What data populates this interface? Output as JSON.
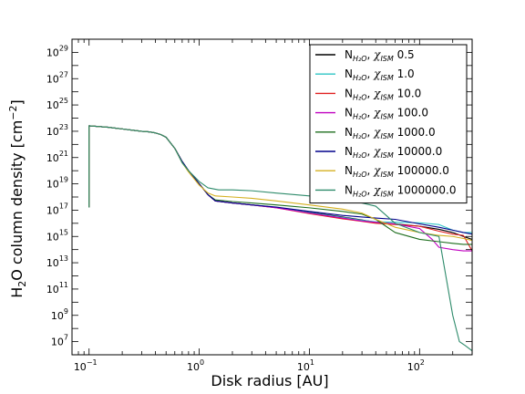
{
  "chart_data": {
    "type": "line",
    "xlabel": "Disk radius [AU]",
    "ylabel_main": "H",
    "ylabel_sub": "2",
    "ylabel_rest": "O column density [cm",
    "ylabel_exp": "−2",
    "ylabel_end": "]",
    "xscale": "log",
    "yscale": "log",
    "xlim": [
      0.07,
      300
    ],
    "ylim": [
      1000000.0,
      1e+30
    ],
    "x_ticks": [
      {
        "value": 0.1,
        "base": "10",
        "exp": "−1"
      },
      {
        "value": 1,
        "base": "10",
        "exp": "0"
      },
      {
        "value": 10,
        "base": "10",
        "exp": "1"
      },
      {
        "value": 100,
        "base": "10",
        "exp": "2"
      }
    ],
    "y_ticks": [
      {
        "value": 10000000.0,
        "base": "10",
        "exp": "7"
      },
      {
        "value": 1000000000.0,
        "base": "10",
        "exp": "9"
      },
      {
        "value": 100000000000.0,
        "base": "10",
        "exp": "11"
      },
      {
        "value": 10000000000000.0,
        "base": "10",
        "exp": "13"
      },
      {
        "value": 1000000000000000.0,
        "base": "10",
        "exp": "15"
      },
      {
        "value": 1e+17,
        "base": "10",
        "exp": "17"
      },
      {
        "value": 1e+19,
        "base": "10",
        "exp": "19"
      },
      {
        "value": 1e+21,
        "base": "10",
        "exp": "21"
      },
      {
        "value": 1e+23,
        "base": "10",
        "exp": "23"
      },
      {
        "value": 1e+25,
        "base": "10",
        "exp": "25"
      },
      {
        "value": 1e+27,
        "base": "10",
        "exp": "27"
      },
      {
        "value": 1e+29,
        "base": "10",
        "exp": "29"
      }
    ],
    "legend_position": "top-right",
    "legend_prefix": "N",
    "legend_sub": "H₂O",
    "legend_chi": "χ",
    "legend_chi_sub": "ISM",
    "series": [
      {
        "name": "0.5",
        "color": "#000000",
        "points": [
          [
            0.1,
            1.6e+17
          ],
          [
            0.1,
            2.6e+23
          ],
          [
            0.15,
            2e+23
          ],
          [
            0.2,
            1.5e+23
          ],
          [
            0.25,
            1.2e+23
          ],
          [
            0.3,
            1e+23
          ],
          [
            0.35,
            9e+22
          ],
          [
            0.4,
            7.5e+22
          ],
          [
            0.45,
            5.5e+22
          ],
          [
            0.5,
            3.5e+22
          ],
          [
            0.6,
            5e+21
          ],
          [
            0.7,
            5e+20
          ],
          [
            0.8,
            1e+20
          ],
          [
            1.0,
            1e+19
          ],
          [
            1.2,
            1.5e+18
          ],
          [
            1.4,
            5e+17
          ],
          [
            2.0,
            3.5e+17
          ],
          [
            3.0,
            2.5e+17
          ],
          [
            5.0,
            1.6e+17
          ],
          [
            10,
            7e+16
          ],
          [
            20,
            3e+16
          ],
          [
            30,
            1.8e+16
          ],
          [
            40,
            1.2e+16
          ],
          [
            60,
            9000000000000000.0
          ],
          [
            100,
            6000000000000000.0
          ],
          [
            150,
            3500000000000000.0
          ],
          [
            200,
            2000000000000000.0
          ],
          [
            250,
            1000000000000000.0
          ],
          [
            300,
            600000000000000.0
          ]
        ]
      },
      {
        "name": "1.0",
        "color": "#2ec4c4",
        "points": [
          [
            0.1,
            1.6e+17
          ],
          [
            0.1,
            2.6e+23
          ],
          [
            0.15,
            2e+23
          ],
          [
            0.2,
            1.5e+23
          ],
          [
            0.25,
            1.2e+23
          ],
          [
            0.3,
            1e+23
          ],
          [
            0.35,
            9e+22
          ],
          [
            0.4,
            7.5e+22
          ],
          [
            0.45,
            5.5e+22
          ],
          [
            0.5,
            3.5e+22
          ],
          [
            0.6,
            5e+21
          ],
          [
            0.7,
            5e+20
          ],
          [
            0.8,
            1e+20
          ],
          [
            1.0,
            1e+19
          ],
          [
            1.2,
            1.5e+18
          ],
          [
            1.4,
            5e+17
          ],
          [
            2.0,
            3.5e+17
          ],
          [
            3.0,
            2.5e+17
          ],
          [
            5.0,
            1.6e+17
          ],
          [
            10,
            6.5e+16
          ],
          [
            20,
            2.8e+16
          ],
          [
            30,
            1.7e+16
          ],
          [
            40,
            1.3e+16
          ],
          [
            60,
            1.2e+16
          ],
          [
            100,
            1.1e+16
          ],
          [
            150,
            8000000000000000.0
          ],
          [
            200,
            3000000000000000.0
          ],
          [
            250,
            2000000000000000.0
          ],
          [
            300,
            2000000000000000.0
          ]
        ]
      },
      {
        "name": "10.0",
        "color": "#e02020",
        "points": [
          [
            0.1,
            1.6e+17
          ],
          [
            0.1,
            2.6e+23
          ],
          [
            0.15,
            2e+23
          ],
          [
            0.2,
            1.5e+23
          ],
          [
            0.25,
            1.2e+23
          ],
          [
            0.3,
            1e+23
          ],
          [
            0.35,
            9e+22
          ],
          [
            0.4,
            7.5e+22
          ],
          [
            0.45,
            5.5e+22
          ],
          [
            0.5,
            3.5e+22
          ],
          [
            0.6,
            5e+21
          ],
          [
            0.7,
            5e+20
          ],
          [
            0.8,
            1e+20
          ],
          [
            1.0,
            1e+19
          ],
          [
            1.2,
            1.5e+18
          ],
          [
            1.4,
            5e+17
          ],
          [
            2.0,
            3.5e+17
          ],
          [
            3.0,
            2.5e+17
          ],
          [
            5.0,
            1.5e+17
          ],
          [
            10,
            5.5e+16
          ],
          [
            20,
            2.2e+16
          ],
          [
            30,
            1.4e+16
          ],
          [
            40,
            1e+16
          ],
          [
            60,
            8000000000000000.0
          ],
          [
            100,
            6000000000000000.0
          ],
          [
            150,
            2500000000000000.0
          ],
          [
            200,
            1500000000000000.0
          ],
          [
            250,
            1200000000000000.0
          ],
          [
            300,
            80000000000000.0
          ]
        ]
      },
      {
        "name": "100.0",
        "color": "#c000c0",
        "points": [
          [
            0.1,
            1.6e+17
          ],
          [
            0.1,
            2.6e+23
          ],
          [
            0.15,
            2e+23
          ],
          [
            0.2,
            1.5e+23
          ],
          [
            0.25,
            1.2e+23
          ],
          [
            0.3,
            1e+23
          ],
          [
            0.35,
            9e+22
          ],
          [
            0.4,
            7.5e+22
          ],
          [
            0.45,
            5.5e+22
          ],
          [
            0.5,
            3.5e+22
          ],
          [
            0.6,
            5e+21
          ],
          [
            0.7,
            5e+20
          ],
          [
            0.8,
            1e+20
          ],
          [
            1.0,
            1e+19
          ],
          [
            1.2,
            1.5e+18
          ],
          [
            1.4,
            5e+17
          ],
          [
            2.0,
            3.5e+17
          ],
          [
            3.0,
            2.5e+17
          ],
          [
            5.0,
            1.5e+17
          ],
          [
            10,
            6e+16
          ],
          [
            20,
            2.5e+16
          ],
          [
            30,
            1.5e+16
          ],
          [
            40,
            1.2e+16
          ],
          [
            60,
            9000000000000000.0
          ],
          [
            100,
            4000000000000000.0
          ],
          [
            130,
            600000000000000.0
          ],
          [
            150,
            150000000000000.0
          ],
          [
            200,
            100000000000000.0
          ],
          [
            250,
            80000000000000.0
          ],
          [
            300,
            80000000000000.0
          ]
        ]
      },
      {
        "name": "1000.0",
        "color": "#1e6e1e",
        "points": [
          [
            0.1,
            1.6e+17
          ],
          [
            0.1,
            2.6e+23
          ],
          [
            0.15,
            2e+23
          ],
          [
            0.2,
            1.5e+23
          ],
          [
            0.25,
            1.2e+23
          ],
          [
            0.3,
            1e+23
          ],
          [
            0.35,
            9e+22
          ],
          [
            0.4,
            7.5e+22
          ],
          [
            0.45,
            5.5e+22
          ],
          [
            0.5,
            3.5e+22
          ],
          [
            0.6,
            5e+21
          ],
          [
            0.7,
            5e+20
          ],
          [
            0.8,
            1e+20
          ],
          [
            1.0,
            1e+19
          ],
          [
            1.2,
            1.5e+18
          ],
          [
            1.4,
            6e+17
          ],
          [
            2.0,
            4.5e+17
          ],
          [
            3.0,
            3.5e+17
          ],
          [
            5.0,
            2.5e+17
          ],
          [
            10,
            1.5e+17
          ],
          [
            20,
            8e+16
          ],
          [
            30,
            5e+16
          ],
          [
            40,
            2e+16
          ],
          [
            60,
            2000000000000000.0
          ],
          [
            100,
            600000000000000.0
          ],
          [
            150,
            400000000000000.0
          ],
          [
            200,
            300000000000000.0
          ],
          [
            250,
            250000000000000.0
          ],
          [
            300,
            250000000000000.0
          ]
        ]
      },
      {
        "name": "10000.0",
        "color": "#00008b",
        "points": [
          [
            0.1,
            1.6e+17
          ],
          [
            0.1,
            2.6e+23
          ],
          [
            0.15,
            2e+23
          ],
          [
            0.2,
            1.5e+23
          ],
          [
            0.25,
            1.2e+23
          ],
          [
            0.3,
            1e+23
          ],
          [
            0.35,
            9e+22
          ],
          [
            0.4,
            7.5e+22
          ],
          [
            0.45,
            5.5e+22
          ],
          [
            0.5,
            3.5e+22
          ],
          [
            0.6,
            5e+21
          ],
          [
            0.7,
            5e+20
          ],
          [
            0.8,
            1e+20
          ],
          [
            1.0,
            1e+19
          ],
          [
            1.2,
            1.5e+18
          ],
          [
            1.4,
            5e+17
          ],
          [
            2.0,
            3.5e+17
          ],
          [
            3.0,
            2.5e+17
          ],
          [
            5.0,
            1.7e+17
          ],
          [
            10,
            8e+16
          ],
          [
            20,
            4e+16
          ],
          [
            30,
            3e+16
          ],
          [
            40,
            2.5e+16
          ],
          [
            60,
            2e+16
          ],
          [
            100,
            9000000000000000.0
          ],
          [
            150,
            5000000000000000.0
          ],
          [
            200,
            3000000000000000.0
          ],
          [
            250,
            2000000000000000.0
          ],
          [
            300,
            1500000000000000.0
          ]
        ]
      },
      {
        "name": "100000.0",
        "color": "#d4b020",
        "points": [
          [
            0.1,
            1.6e+17
          ],
          [
            0.1,
            2.6e+23
          ],
          [
            0.15,
            2e+23
          ],
          [
            0.2,
            1.5e+23
          ],
          [
            0.25,
            1.2e+23
          ],
          [
            0.3,
            1e+23
          ],
          [
            0.35,
            9e+22
          ],
          [
            0.4,
            7.5e+22
          ],
          [
            0.45,
            5.5e+22
          ],
          [
            0.5,
            3.5e+22
          ],
          [
            0.6,
            5e+21
          ],
          [
            0.7,
            4e+20
          ],
          [
            0.8,
            8e+19
          ],
          [
            1.0,
            8e+18
          ],
          [
            1.2,
            2e+18
          ],
          [
            1.4,
            1.2e+18
          ],
          [
            2.0,
            1e+18
          ],
          [
            3.0,
            8e+17
          ],
          [
            5.0,
            5e+17
          ],
          [
            10,
            2.5e+17
          ],
          [
            20,
            1.2e+17
          ],
          [
            30,
            6e+16
          ],
          [
            40,
            2e+16
          ],
          [
            60,
            5000000000000000.0
          ],
          [
            100,
            2000000000000000.0
          ],
          [
            150,
            1200000000000000.0
          ],
          [
            200,
            1000000000000000.0
          ],
          [
            250,
            700000000000000.0
          ],
          [
            300,
            500000000000000.0
          ]
        ]
      },
      {
        "name": "1000000.0",
        "color": "#2e8b6b",
        "points": [
          [
            0.1,
            1.6e+17
          ],
          [
            0.1,
            2.6e+23
          ],
          [
            0.15,
            2e+23
          ],
          [
            0.2,
            1.5e+23
          ],
          [
            0.25,
            1.2e+23
          ],
          [
            0.3,
            1e+23
          ],
          [
            0.35,
            9e+22
          ],
          [
            0.4,
            7.5e+22
          ],
          [
            0.45,
            5.5e+22
          ],
          [
            0.5,
            3.5e+22
          ],
          [
            0.6,
            5e+21
          ],
          [
            0.7,
            4e+20
          ],
          [
            0.8,
            1e+20
          ],
          [
            1.0,
            1.5e+19
          ],
          [
            1.2,
            5e+18
          ],
          [
            1.5,
            3.5e+18
          ],
          [
            2.0,
            3.5e+18
          ],
          [
            3.0,
            3e+18
          ],
          [
            5.0,
            2e+18
          ],
          [
            10,
            1.2e+18
          ],
          [
            20,
            6e+17
          ],
          [
            30,
            3.5e+17
          ],
          [
            40,
            2e+17
          ],
          [
            60,
            1e+16
          ],
          [
            100,
            2000000000000000.0
          ],
          [
            150,
            1000000000000000.0
          ],
          [
            200,
            1000000000.0
          ],
          [
            230,
            10000000.0
          ],
          [
            260,
            5000000.0
          ],
          [
            300,
            2000000.0
          ]
        ]
      }
    ]
  }
}
